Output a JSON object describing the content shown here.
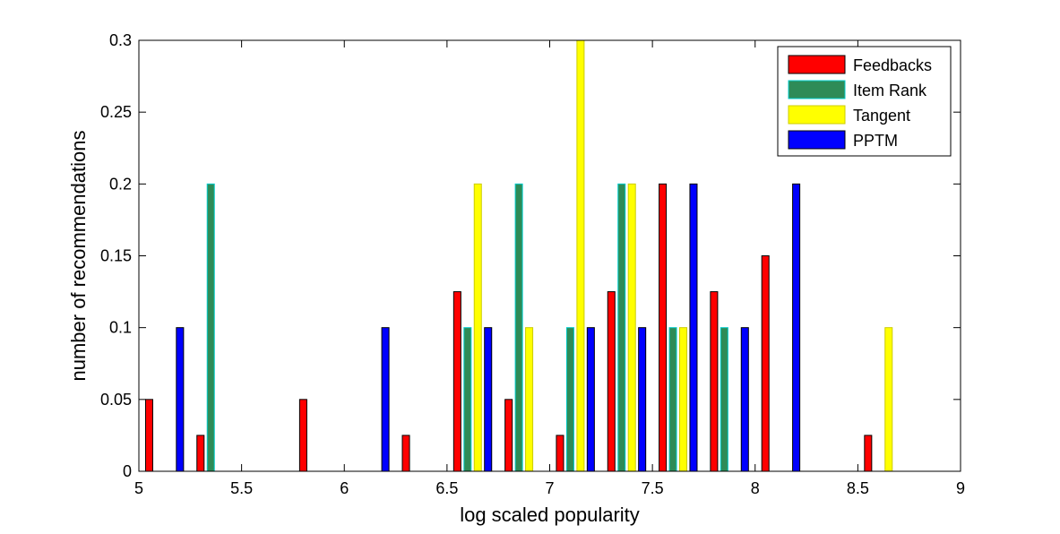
{
  "chart_data": {
    "type": "bar",
    "title": "",
    "xlabel": "log scaled popularity",
    "ylabel": "number of recommendations",
    "xlim": [
      5,
      9
    ],
    "ylim": [
      0,
      0.3
    ],
    "xticks": [
      "5",
      "5.5",
      "6",
      "6.5",
      "7",
      "7.5",
      "8",
      "8.5",
      "9"
    ],
    "yticks": [
      "0",
      "0.05",
      "0.1",
      "0.15",
      "0.2",
      "0.25",
      "0.3"
    ],
    "grid": false,
    "legend_position": "top-right",
    "bin_centers": [
      5.125,
      5.375,
      5.625,
      5.875,
      6.125,
      6.375,
      6.625,
      6.875,
      7.125,
      7.375,
      7.625,
      7.875,
      8.125,
      8.375,
      8.625,
      8.875
    ],
    "series": [
      {
        "name": "Feedbacks",
        "color": "#ff0000",
        "edge": "#000000",
        "values": [
          0.05,
          0.025,
          0,
          0.05,
          0,
          0.025,
          0.125,
          0.05,
          0.025,
          0.125,
          0.2,
          0.125,
          0.15,
          0,
          0.025,
          0
        ]
      },
      {
        "name": "Item Rank",
        "color": "#2e8b57",
        "edge": "#00cccc",
        "values": [
          0,
          0.2,
          0,
          0,
          0,
          0,
          0.1,
          0.2,
          0.1,
          0.2,
          0.1,
          0.1,
          0,
          0,
          0,
          0
        ]
      },
      {
        "name": "Tangent",
        "color": "#ffff00",
        "edge": "#cccc00",
        "values": [
          0,
          0,
          0,
          0,
          0,
          0,
          0.2,
          0.1,
          0.3,
          0.2,
          0.1,
          0,
          0,
          0,
          0.1,
          0
        ]
      },
      {
        "name": "PPTM",
        "color": "#0000ff",
        "edge": "#000000",
        "values": [
          0.1,
          0,
          0,
          0,
          0.1,
          0,
          0.1,
          0,
          0.1,
          0.1,
          0.2,
          0.1,
          0.2,
          0,
          0,
          0
        ]
      }
    ]
  }
}
